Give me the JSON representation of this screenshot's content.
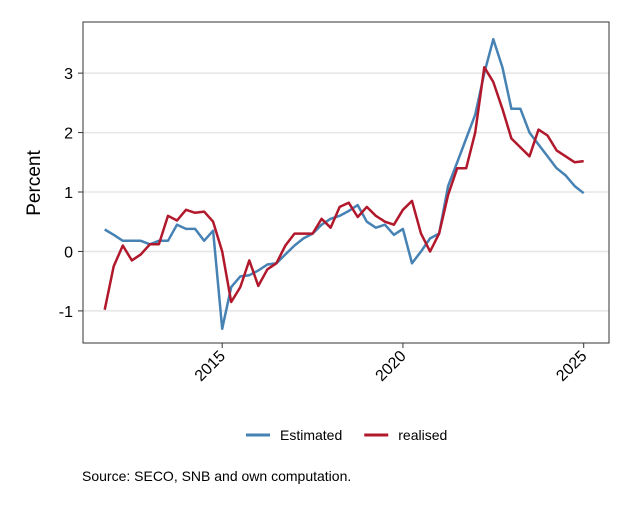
{
  "chart_data": {
    "type": "line",
    "x": [
      2011.75,
      2012,
      2012.25,
      2012.5,
      2012.75,
      2013,
      2013.25,
      2013.5,
      2013.75,
      2014,
      2014.25,
      2014.5,
      2014.75,
      2015,
      2015.25,
      2015.5,
      2015.75,
      2016,
      2016.25,
      2016.5,
      2016.75,
      2017,
      2017.25,
      2017.5,
      2017.75,
      2018,
      2018.25,
      2018.5,
      2018.75,
      2019,
      2019.25,
      2019.5,
      2019.75,
      2020,
      2020.25,
      2020.5,
      2020.75,
      2021,
      2021.25,
      2021.5,
      2021.75,
      2022,
      2022.25,
      2022.5,
      2022.75,
      2023,
      2023.25,
      2023.5,
      2023.75,
      2024,
      2024.25,
      2024.5,
      2024.75,
      2025
    ],
    "series": [
      {
        "name": "Estimated",
        "color": "#4682b4",
        "values": [
          0.37,
          0.28,
          0.18,
          0.18,
          0.18,
          0.12,
          0.18,
          0.18,
          0.45,
          0.38,
          0.38,
          0.18,
          0.35,
          -1.3,
          -0.6,
          -0.42,
          -0.4,
          -0.32,
          -0.22,
          -0.2,
          -0.05,
          0.1,
          0.22,
          0.3,
          0.45,
          0.55,
          0.6,
          0.68,
          0.78,
          0.5,
          0.4,
          0.45,
          0.28,
          0.38,
          -0.2,
          0.0,
          0.22,
          0.3,
          1.1,
          1.5,
          1.9,
          2.3,
          3.0,
          3.57,
          3.1,
          2.4,
          2.4,
          2.0,
          1.8,
          1.6,
          1.4,
          1.28,
          1.1,
          0.98
        ]
      },
      {
        "name": "realised",
        "color": "#b2182b",
        "values": [
          -0.98,
          -0.25,
          0.1,
          -0.15,
          -0.05,
          0.12,
          0.12,
          0.6,
          0.52,
          0.7,
          0.65,
          0.67,
          0.5,
          0.0,
          -0.85,
          -0.6,
          -0.15,
          -0.58,
          -0.3,
          -0.2,
          0.1,
          0.3,
          0.3,
          0.3,
          0.55,
          0.4,
          0.75,
          0.82,
          0.58,
          0.75,
          0.6,
          0.5,
          0.45,
          0.7,
          0.85,
          0.3,
          0.0,
          0.3,
          0.95,
          1.4,
          1.4,
          2.0,
          3.1,
          2.85,
          2.4,
          1.9,
          1.75,
          1.6,
          2.05,
          1.95,
          1.7,
          1.6,
          1.5,
          1.52
        ]
      }
    ],
    "xlim": [
      2011.15,
      2025.7
    ],
    "xticks": [
      2015,
      2020,
      2025
    ],
    "ylim": [
      -1.54,
      3.86
    ],
    "yticks": [
      -1,
      0,
      1,
      2,
      3
    ],
    "ylabel": "Percent",
    "grid": true,
    "legend": "bottom",
    "caption": "Source: SECO, SNB and own computation."
  }
}
